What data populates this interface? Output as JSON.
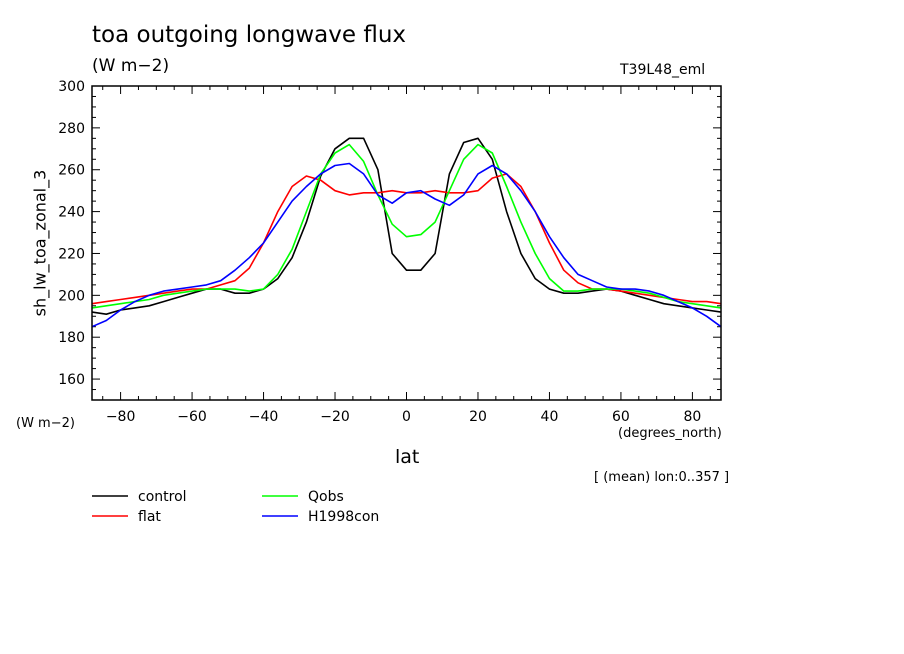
{
  "header": {
    "title": "toa outgoing longwave flux",
    "units": "(W m−2)",
    "experiment": "T39L48_eml"
  },
  "axes": {
    "ylabel": "sh_lw_toa_zonal_3",
    "yunits": "(W m−2)",
    "xunits": "(degrees_north)",
    "xlabel": "lat"
  },
  "footer": {
    "note": "[ (mean) lon:0..357 ]"
  },
  "chart_data": {
    "type": "line",
    "title": "toa outgoing longwave flux",
    "ylabel": "sh_lw_toa_zonal_3",
    "xlabel": "lat",
    "xlim": [
      -88,
      88
    ],
    "ylim": [
      150,
      300
    ],
    "xticks": [
      -80,
      -60,
      -40,
      -20,
      0,
      20,
      40,
      60,
      80
    ],
    "xtick_labels": [
      "−80",
      "−60",
      "−40",
      "−20",
      "0",
      "20",
      "40",
      "60",
      "80"
    ],
    "yticks": [
      160,
      180,
      200,
      220,
      240,
      260,
      280,
      300
    ],
    "ytick_labels": [
      "160",
      "180",
      "200",
      "220",
      "240",
      "260",
      "280",
      "300"
    ],
    "grid": false,
    "legend_position": "bottom-left",
    "x": [
      -88,
      -84,
      -80,
      -76,
      -72,
      -68,
      -64,
      -60,
      -56,
      -52,
      -48,
      -44,
      -40,
      -36,
      -32,
      -28,
      -24,
      -20,
      -16,
      -12,
      -8,
      -4,
      0,
      4,
      8,
      12,
      16,
      20,
      24,
      28,
      32,
      36,
      40,
      44,
      48,
      52,
      56,
      60,
      64,
      68,
      72,
      76,
      80,
      84,
      88
    ],
    "series": [
      {
        "name": "control",
        "color": "#000000",
        "values": [
          192,
          191,
          193,
          194,
          195,
          197,
          199,
          201,
          203,
          203,
          201,
          201,
          203,
          208,
          218,
          235,
          257,
          270,
          275,
          275,
          260,
          220,
          212,
          212,
          220,
          258,
          273,
          275,
          265,
          240,
          220,
          208,
          203,
          201,
          201,
          202,
          203,
          202,
          200,
          198,
          196,
          195,
          194,
          193,
          192
        ]
      },
      {
        "name": "flat",
        "color": "#ff0000",
        "values": [
          196,
          197,
          198,
          199,
          200,
          201,
          202,
          203,
          203,
          205,
          207,
          213,
          225,
          240,
          252,
          257,
          255,
          250,
          248,
          249,
          249,
          250,
          249,
          249,
          250,
          249,
          249,
          250,
          256,
          258,
          252,
          240,
          225,
          212,
          206,
          203,
          203,
          202,
          201,
          200,
          199,
          198,
          197,
          197,
          196
        ]
      },
      {
        "name": "Qobs",
        "color": "#00ff00",
        "values": [
          194,
          195,
          196,
          197,
          198,
          200,
          201,
          202,
          203,
          203,
          203,
          202,
          203,
          210,
          222,
          240,
          258,
          268,
          272,
          264,
          248,
          234,
          228,
          229,
          235,
          250,
          265,
          272,
          268,
          252,
          235,
          220,
          208,
          202,
          202,
          203,
          203,
          203,
          202,
          201,
          199,
          197,
          196,
          195,
          194
        ]
      },
      {
        "name": "H1998con",
        "color": "#0000ff",
        "values": [
          185,
          188,
          193,
          197,
          200,
          202,
          203,
          204,
          205,
          207,
          212,
          218,
          225,
          235,
          245,
          252,
          258,
          262,
          263,
          258,
          248,
          244,
          249,
          250,
          246,
          243,
          248,
          258,
          262,
          258,
          250,
          240,
          228,
          218,
          210,
          207,
          204,
          203,
          203,
          202,
          200,
          197,
          194,
          190,
          185
        ]
      }
    ]
  }
}
